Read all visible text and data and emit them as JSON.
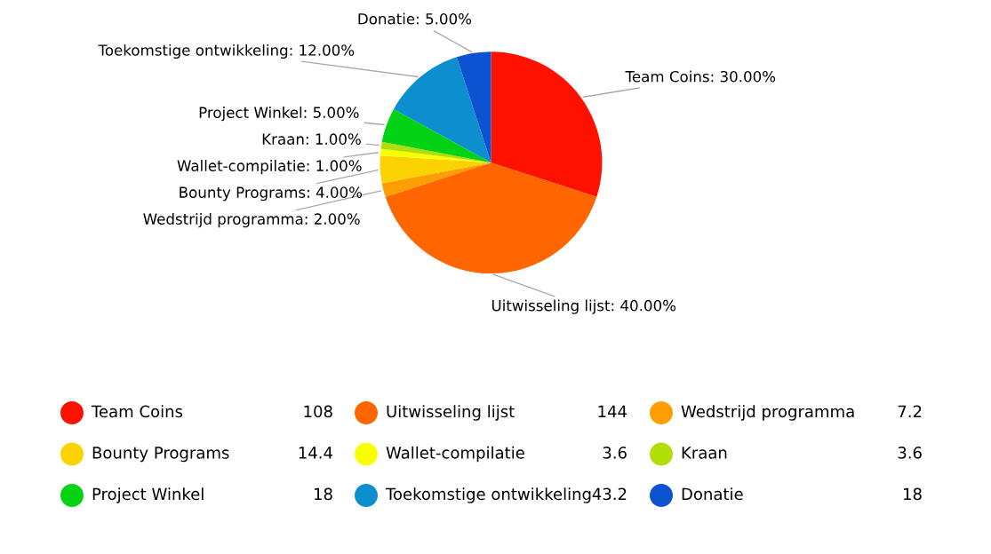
{
  "chart_data": {
    "type": "pie",
    "categories": [
      "Team Coins",
      "Uitwisseling lijst",
      "Wedstrijd programma",
      "Bounty Programs",
      "Wallet-compilatie",
      "Kraan",
      "Project Winkel",
      "Toekomstige ontwikkeling",
      "Donatie"
    ],
    "values": [
      108,
      144,
      7.2,
      14.4,
      3.6,
      3.6,
      18,
      43.2,
      18
    ],
    "data_labels": true,
    "annotations": [
      "Team Coins: 30.00%",
      "Uitwisseling lijst: 40.00%",
      "Wedstrijd programma: 2.00%",
      "Bounty Programs: 4.00%",
      "Wallet-compilatie: 1.00%",
      "Kraan: 1.00%",
      "Project Winkel: 5.00%",
      "Toekomstige ontwikkeling: 12.00%",
      "Donatie: 5.00%"
    ],
    "colors": [
      "#ff1100",
      "#ff6600",
      "#ff9e01",
      "#fcd202",
      "#f8ff01",
      "#b0de09",
      "#04d215",
      "#0d8ecf",
      "#0d52d1"
    ],
    "legend": "bottom"
  }
}
